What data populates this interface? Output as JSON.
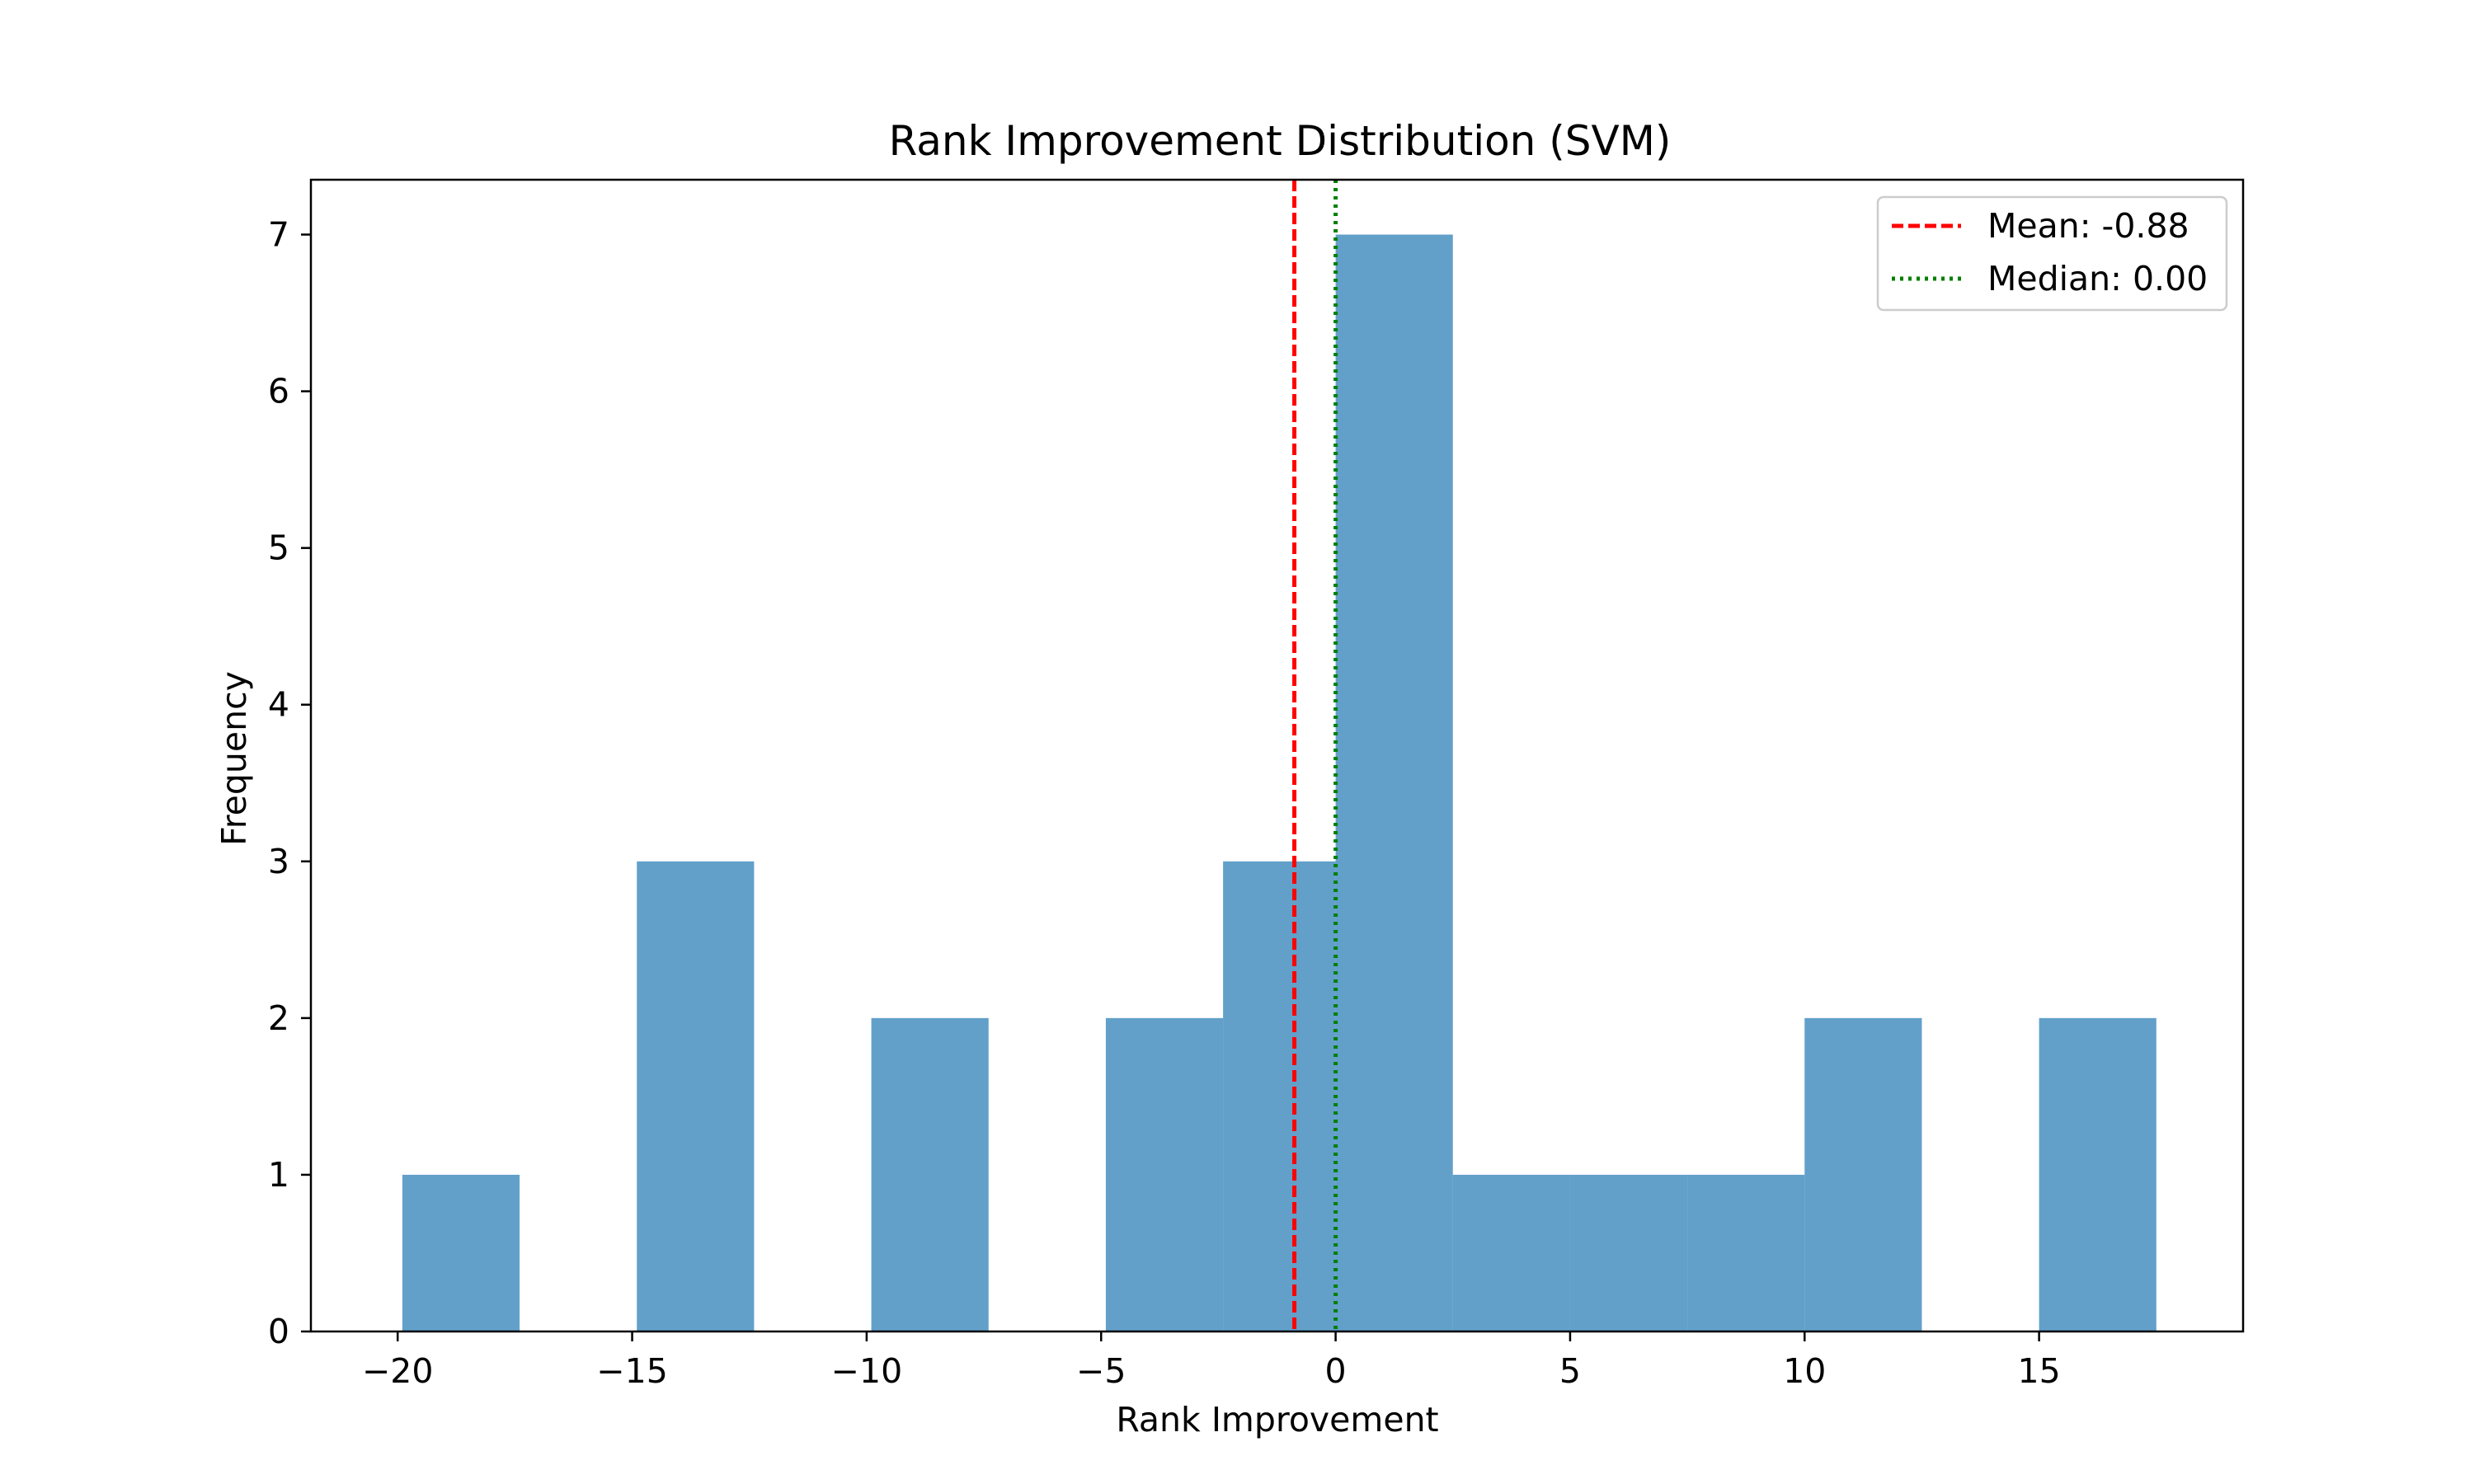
{
  "chart_data": {
    "type": "histogram",
    "title": "Rank Improvement Distribution (SVM)",
    "xlabel": "Rank Improvement",
    "ylabel": "Frequency",
    "xlim": [
      -21.85,
      19.35
    ],
    "ylim": [
      0,
      7.35
    ],
    "xticks": [
      -20,
      -15,
      -10,
      -5,
      0,
      5,
      10,
      15
    ],
    "xtick_labels": [
      "−20",
      "−15",
      "−10",
      "−5",
      "0",
      "5",
      "10",
      "15"
    ],
    "yticks": [
      0,
      1,
      2,
      3,
      4,
      5,
      6,
      7
    ],
    "ytick_labels": [
      "0",
      "1",
      "2",
      "3",
      "4",
      "5",
      "6",
      "7"
    ],
    "bin_edges": [
      -20,
      -17.5,
      -15,
      -12.5,
      -10,
      -7.5,
      -5,
      -2.5,
      0,
      2.5,
      5,
      7.5,
      10,
      12.5,
      15,
      17.5
    ],
    "bins": [
      {
        "x0": -19.9,
        "x1": -17.4,
        "count": 1
      },
      {
        "x0": -17.4,
        "x1": -14.9,
        "count": 0
      },
      {
        "x0": -14.9,
        "x1": -12.4,
        "count": 3
      },
      {
        "x0": -12.4,
        "x1": -9.9,
        "count": 0
      },
      {
        "x0": -9.9,
        "x1": -7.4,
        "count": 2
      },
      {
        "x0": -7.4,
        "x1": -4.9,
        "count": 0
      },
      {
        "x0": -4.9,
        "x1": -2.4,
        "count": 2
      },
      {
        "x0": -2.4,
        "x1": 0.0,
        "count": 3
      },
      {
        "x0": 0.0,
        "x1": 2.5,
        "count": 7
      },
      {
        "x0": 2.5,
        "x1": 5.0,
        "count": 1
      },
      {
        "x0": 5.0,
        "x1": 7.5,
        "count": 1
      },
      {
        "x0": 7.5,
        "x1": 10.0,
        "count": 1
      },
      {
        "x0": 10.0,
        "x1": 12.5,
        "count": 2
      },
      {
        "x0": 12.5,
        "x1": 15.0,
        "count": 0
      },
      {
        "x0": 15.0,
        "x1": 17.5,
        "count": 2
      }
    ],
    "bar_color": "#1f77b4",
    "bar_opacity": 0.7,
    "reference_lines": [
      {
        "label": "Mean: -0.88",
        "x": -0.88,
        "color": "#ff0000",
        "style": "dashed"
      },
      {
        "label": "Median: 0.00",
        "x": 0.0,
        "color": "#008000",
        "style": "dotted"
      }
    ],
    "legend_position": "top-right",
    "grid": false
  }
}
